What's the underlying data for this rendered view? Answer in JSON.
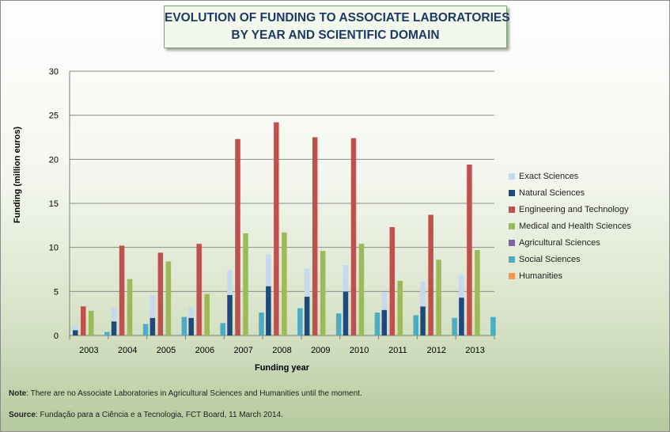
{
  "title_lines": [
    "EVOLUTION OF FUNDING TO ASSOCIATE LABORATORIES",
    "BY YEAR AND SCIENTIFIC DOMAIN"
  ],
  "note": {
    "label": "Note",
    "text": ": There are no Associate Laboratories in Agricultural Sciences and Humanities until the moment."
  },
  "source": {
    "label": "Source",
    "text": ": Fundação para a Ciência e a Tecnologia, FCT Board, 11 March 2014."
  },
  "chart_data": {
    "type": "bar",
    "xlabel": "Funding year",
    "ylabel": "Funding (million euros)",
    "ylim": [
      0,
      30
    ],
    "yticks": [
      0,
      5,
      10,
      15,
      20,
      25,
      30
    ],
    "grid": true,
    "legend_position": "right",
    "stacked_pairs": [
      [
        "Exact Sciences",
        "Natural Sciences"
      ]
    ],
    "categories": [
      "2003",
      "2004",
      "2005",
      "2006",
      "2007",
      "2008",
      "2009",
      "2010",
      "2011",
      "2012",
      "2013"
    ],
    "series": [
      {
        "name": "Exact Sciences",
        "color": "#c6d9f1",
        "values": [
          0.6,
          1.5,
          2.6,
          1.2,
          2.8,
          3.6,
          3.2,
          3.0,
          2.0,
          2.8,
          2.6
        ]
      },
      {
        "name": "Natural Sciences",
        "color": "#1f497d",
        "values": [
          0.6,
          1.6,
          2.0,
          2.0,
          4.6,
          5.6,
          4.4,
          5.0,
          2.9,
          3.3,
          4.3
        ]
      },
      {
        "name": "Engineering and Technology",
        "color": "#c0504d",
        "values": [
          3.3,
          10.2,
          9.4,
          10.4,
          22.3,
          24.2,
          22.5,
          22.4,
          12.3,
          13.7,
          19.4
        ]
      },
      {
        "name": "Medical and Health Sciences",
        "color": "#9bbb59",
        "values": [
          2.8,
          6.4,
          8.4,
          4.7,
          11.6,
          11.7,
          9.6,
          10.4,
          6.2,
          8.6,
          9.7
        ]
      },
      {
        "name": "Agricultural Sciences",
        "color": "#8064a2",
        "values": [
          0,
          0,
          0,
          0,
          0,
          0,
          0,
          0,
          0,
          0,
          0
        ]
      },
      {
        "name": "Social Sciences",
        "color": "#4bacc6",
        "values": [
          0.4,
          1.3,
          2.1,
          1.4,
          2.6,
          3.1,
          2.5,
          2.6,
          2.3,
          2.0,
          2.1
        ]
      },
      {
        "name": "Humanities",
        "color": "#f79646",
        "values": [
          0,
          0,
          0,
          0,
          0,
          0,
          0,
          0,
          0,
          0,
          0
        ]
      }
    ]
  }
}
